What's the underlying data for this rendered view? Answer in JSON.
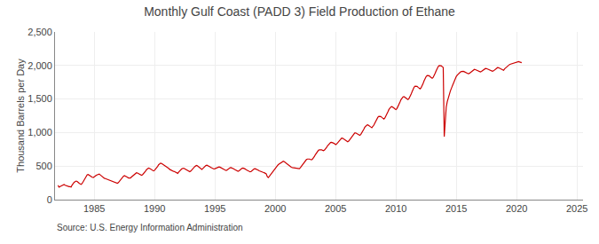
{
  "chart_data": {
    "type": "line",
    "title": "Monthly Gulf Coast (PADD 3) Field Production of Ethane",
    "ylabel": "Thousand Barrels per Day",
    "annotations": [
      "Source: U.S. Energy Information Administration"
    ],
    "color": "#cc0000",
    "grid": true,
    "xlim": [
      1981.75,
      2025.5
    ],
    "xticks": [
      1985,
      1990,
      1995,
      2000,
      2005,
      2010,
      2015,
      2020,
      2025
    ],
    "ylim": [
      0,
      2500
    ],
    "yticks": [
      0,
      500,
      {
        "value": 1000,
        "label": "1,000"
      },
      {
        "value": 1500,
        "label": "1,500"
      },
      {
        "value": 2000,
        "label": "2,000"
      },
      {
        "value": 2500,
        "label": "2,500"
      }
    ],
    "x": [
      1982,
      1982.0833333333333,
      1982.1666666666667,
      1982.25,
      1982.3333333333333,
      1982.4166666666667,
      1982.5,
      1982.5833333333333,
      1982.6666666666667,
      1982.75,
      1982.8333333333333,
      1982.9166666666667,
      1983,
      1983.0833333333333,
      1983.1666666666667,
      1983.25,
      1983.3333333333333,
      1983.4166666666667,
      1983.5,
      1983.5833333333333,
      1983.6666666666667,
      1983.75,
      1983.8333333333333,
      1983.9166666666667,
      1984,
      1984.0833333333333,
      1984.1666666666667,
      1984.25,
      1984.3333333333333,
      1984.4166666666667,
      1984.5,
      1984.5833333333333,
      1984.6666666666667,
      1984.75,
      1984.8333333333333,
      1984.9166666666667,
      1985,
      1985.0833333333333,
      1985.1666666666667,
      1985.25,
      1985.3333333333333,
      1985.4166666666667,
      1985.5,
      1985.5833333333333,
      1985.6666666666667,
      1985.75,
      1985.8333333333333,
      1985.9166666666667,
      1986,
      1986.0833333333333,
      1986.1666666666667,
      1986.25,
      1986.3333333333333,
      1986.4166666666667,
      1986.5,
      1986.5833333333333,
      1986.6666666666667,
      1986.75,
      1986.8333333333333,
      1986.9166666666667,
      1987,
      1987.0833333333333,
      1987.1666666666667,
      1987.25,
      1987.3333333333333,
      1987.4166666666667,
      1987.5,
      1987.5833333333333,
      1987.6666666666667,
      1987.75,
      1987.8333333333333,
      1987.9166666666667,
      1988,
      1988.0833333333333,
      1988.1666666666667,
      1988.25,
      1988.3333333333333,
      1988.4166666666667,
      1988.5,
      1988.5833333333333,
      1988.6666666666667,
      1988.75,
      1988.8333333333333,
      1988.9166666666667,
      1989,
      1989.0833333333333,
      1989.1666666666667,
      1989.25,
      1989.3333333333333,
      1989.4166666666667,
      1989.5,
      1989.5833333333333,
      1989.6666666666667,
      1989.75,
      1989.8333333333333,
      1989.9166666666667,
      1990,
      1990.0833333333333,
      1990.1666666666667,
      1990.25,
      1990.3333333333333,
      1990.4166666666667,
      1990.5,
      1990.5833333333333,
      1990.6666666666667,
      1990.75,
      1990.8333333333333,
      1990.9166666666667,
      1991,
      1991.0833333333333,
      1991.1666666666667,
      1991.25,
      1991.3333333333333,
      1991.4166666666667,
      1991.5,
      1991.5833333333333,
      1991.6666666666667,
      1991.75,
      1991.8333333333333,
      1991.9166666666667,
      1992,
      1992.0833333333333,
      1992.1666666666667,
      1992.25,
      1992.3333333333333,
      1992.4166666666667,
      1992.5,
      1992.5833333333333,
      1992.6666666666667,
      1992.75,
      1992.8333333333333,
      1992.9166666666667,
      1993,
      1993.0833333333333,
      1993.1666666666667,
      1993.25,
      1993.3333333333333,
      1993.4166666666667,
      1993.5,
      1993.5833333333333,
      1993.6666666666667,
      1993.75,
      1993.8333333333333,
      1993.9166666666667,
      1994,
      1994.0833333333333,
      1994.1666666666667,
      1994.25,
      1994.3333333333333,
      1994.4166666666667,
      1994.5,
      1994.5833333333333,
      1994.6666666666667,
      1994.75,
      1994.8333333333333,
      1994.9166666666667,
      1995,
      1995.0833333333333,
      1995.1666666666667,
      1995.25,
      1995.3333333333333,
      1995.4166666666667,
      1995.5,
      1995.5833333333333,
      1995.6666666666667,
      1995.75,
      1995.8333333333333,
      1995.9166666666667,
      1996,
      1996.0833333333333,
      1996.1666666666667,
      1996.25,
      1996.3333333333333,
      1996.4166666666667,
      1996.5,
      1996.5833333333333,
      1996.6666666666667,
      1996.75,
      1996.8333333333333,
      1996.9166666666667,
      1997,
      1997.0833333333333,
      1997.1666666666667,
      1997.25,
      1997.3333333333333,
      1997.4166666666667,
      1997.5,
      1997.5833333333333,
      1997.6666666666667,
      1997.75,
      1997.8333333333333,
      1997.9166666666667,
      1998,
      1998.0833333333333,
      1998.1666666666667,
      1998.25,
      1998.3333333333333,
      1998.4166666666667,
      1998.5,
      1998.5833333333333,
      1998.6666666666667,
      1998.75,
      1998.8333333333333,
      1998.9166666666667,
      1999,
      1999.0833333333333,
      1999.1666666666667,
      1999.25,
      1999.3333333333333,
      1999.4166666666667,
      1999.5,
      1999.5833333333333,
      1999.6666666666667,
      1999.75,
      1999.8333333333333,
      1999.9166666666667,
      2000,
      2000.0833333333333,
      2000.1666666666667,
      2000.25,
      2000.3333333333333,
      2000.4166666666667,
      2000.5,
      2000.5833333333333,
      2000.6666666666667,
      2000.75,
      2000.8333333333333,
      2000.9166666666667,
      2001,
      2001.0833333333333,
      2001.1666666666667,
      2001.25,
      2001.3333333333333,
      2001.4166666666667,
      2001.5,
      2001.5833333333333,
      2001.6666666666667,
      2001.75,
      2001.8333333333333,
      2001.9166666666667,
      2002,
      2002.0833333333333,
      2002.1666666666667,
      2002.25,
      2002.3333333333333,
      2002.4166666666667,
      2002.5,
      2002.5833333333333,
      2002.6666666666667,
      2002.75,
      2002.8333333333333,
      2002.9166666666667,
      2003,
      2003.0833333333333,
      2003.1666666666667,
      2003.25,
      2003.3333333333333,
      2003.4166666666667,
      2003.5,
      2003.5833333333333,
      2003.6666666666667,
      2003.75,
      2003.8333333333333,
      2003.9166666666667,
      2004,
      2004.0833333333333,
      2004.1666666666667,
      2004.25,
      2004.3333333333333,
      2004.4166666666667,
      2004.5,
      2004.5833333333333,
      2004.6666666666667,
      2004.75,
      2004.8333333333333,
      2004.9166666666667,
      2005,
      2005.0833333333333,
      2005.1666666666667,
      2005.25,
      2005.3333333333333,
      2005.4166666666667,
      2005.5,
      2005.5833333333333,
      2005.6666666666667,
      2005.75,
      2005.8333333333333,
      2005.9166666666667,
      2006,
      2006.0833333333333,
      2006.1666666666667,
      2006.25,
      2006.3333333333333,
      2006.4166666666667,
      2006.5,
      2006.5833333333333,
      2006.6666666666667,
      2006.75,
      2006.8333333333333,
      2006.9166666666667,
      2007,
      2007.0833333333333,
      2007.1666666666667,
      2007.25,
      2007.3333333333333,
      2007.4166666666667,
      2007.5,
      2007.5833333333333,
      2007.6666666666667,
      2007.75,
      2007.8333333333333,
      2007.9166666666667,
      2008,
      2008.0833333333333,
      2008.1666666666667,
      2008.25,
      2008.3333333333333,
      2008.4166666666667,
      2008.5,
      2008.5833333333333,
      2008.6666666666667,
      2008.75,
      2008.8333333333333,
      2008.9166666666667,
      2009,
      2009.0833333333333,
      2009.1666666666667,
      2009.25,
      2009.3333333333333,
      2009.4166666666667,
      2009.5,
      2009.5833333333333,
      2009.6666666666667,
      2009.75,
      2009.8333333333333,
      2009.9166666666667,
      2010,
      2010.0833333333333,
      2010.1666666666667,
      2010.25,
      2010.3333333333333,
      2010.4166666666667,
      2010.5,
      2010.5833333333333,
      2010.6666666666667,
      2010.75,
      2010.8333333333333,
      2010.9166666666667,
      2011,
      2011.0833333333333,
      2011.1666666666667,
      2011.25,
      2011.3333333333333,
      2011.4166666666667,
      2011.5,
      2011.5833333333333,
      2011.6666666666667,
      2011.75,
      2011.8333333333333,
      2011.9166666666667,
      2012,
      2012.0833333333333,
      2012.1666666666667,
      2012.25,
      2012.3333333333333,
      2012.4166666666667,
      2012.5,
      2012.5833333333333,
      2012.6666666666667,
      2012.75,
      2012.8333333333333,
      2012.9166666666667,
      2013,
      2013.0833333333333,
      2013.1666666666667,
      2013.25,
      2013.3333333333333,
      2013.4166666666667,
      2013.5,
      2013.5833333333333,
      2013.6666666666667,
      2013.75,
      2013.8333333333333,
      2013.9166666666667,
      2014,
      2014.0833333333333,
      2014.1666666666667,
      2014.25,
      2014.3333333333333,
      2014.4166666666667,
      2014.5,
      2014.5833333333333,
      2014.6666666666667,
      2014.75,
      2014.8333333333333,
      2014.9166666666667,
      2015,
      2015.0833333333333,
      2015.1666666666667,
      2015.25,
      2015.3333333333333,
      2015.4166666666667,
      2015.5,
      2015.5833333333333,
      2015.6666666666667,
      2015.75,
      2015.8333333333333,
      2015.9166666666667,
      2016,
      2016.0833333333333,
      2016.1666666666667,
      2016.25,
      2016.3333333333333,
      2016.4166666666667,
      2016.5,
      2016.5833333333333,
      2016.6666666666667,
      2016.75,
      2016.8333333333333,
      2016.9166666666667,
      2017,
      2017.0833333333333,
      2017.1666666666667,
      2017.25,
      2017.3333333333333,
      2017.4166666666667,
      2017.5,
      2017.5833333333333,
      2017.6666666666667,
      2017.75,
      2017.8333333333333,
      2017.9166666666667,
      2018,
      2018.0833333333333,
      2018.1666666666667,
      2018.25,
      2018.3333333333333,
      2018.4166666666667,
      2018.5,
      2018.5833333333333,
      2018.6666666666667,
      2018.75,
      2018.8333333333333,
      2018.9166666666667,
      2019,
      2019.0833333333333,
      2019.1666666666667,
      2019.25,
      2019.3333333333333,
      2019.4166666666667,
      2019.5,
      2019.5833333333333,
      2019.6666666666667,
      2019.75,
      2019.8333333333333,
      2019.9166666666667,
      2020,
      2020.0833333333333,
      2020.1666666666667,
      2020.25,
      2020.3333333333333,
      2020.4166666666667
    ],
    "values": [
      213,
      186,
      196,
      206,
      218,
      222,
      226,
      215,
      207,
      203,
      198,
      194,
      194,
      188,
      218,
      243,
      258,
      268,
      277,
      271,
      253,
      244,
      235,
      229,
      242,
      268,
      307,
      337,
      356,
      370,
      375,
      362,
      352,
      342,
      334,
      330,
      337,
      350,
      364,
      370,
      376,
      380,
      369,
      354,
      340,
      329,
      319,
      314,
      309,
      304,
      295,
      286,
      280,
      275,
      270,
      265,
      260,
      255,
      250,
      245,
      254,
      275,
      294,
      314,
      334,
      348,
      358,
      352,
      343,
      333,
      323,
      318,
      322,
      337,
      352,
      367,
      381,
      391,
      401,
      397,
      388,
      378,
      369,
      364,
      371,
      386,
      405,
      425,
      447,
      462,
      472,
      467,
      457,
      448,
      433,
      428,
      438,
      453,
      471,
      495,
      519,
      534,
      544,
      539,
      530,
      521,
      507,
      502,
      491,
      481,
      466,
      451,
      441,
      431,
      426,
      421,
      416,
      406,
      397,
      392,
      411,
      430,
      449,
      459,
      465,
      469,
      460,
      450,
      440,
      430,
      421,
      416,
      426,
      445,
      464,
      479,
      494,
      504,
      509,
      500,
      486,
      471,
      457,
      451,
      465,
      483,
      498,
      508,
      513,
      508,
      499,
      490,
      480,
      471,
      462,
      457,
      461,
      470,
      480,
      485,
      487,
      484,
      477,
      468,
      458,
      449,
      440,
      434,
      441,
      455,
      467,
      475,
      477,
      473,
      466,
      457,
      445,
      436,
      427,
      422,
      430,
      447,
      461,
      468,
      470,
      466,
      458,
      447,
      436,
      427,
      419,
      414,
      421,
      437,
      451,
      459,
      461,
      457,
      450,
      440,
      430,
      422,
      415,
      411,
      407,
      402,
      398,
      385,
      345,
      330,
      345,
      365,
      388,
      415,
      440,
      460,
      472,
      488,
      505,
      522,
      532,
      545,
      558,
      568,
      572,
      565,
      552,
      542,
      532,
      518,
      502,
      492,
      482,
      477,
      474,
      472,
      470,
      467,
      463,
      458,
      462,
      477,
      497,
      519,
      543,
      566,
      585,
      598,
      605,
      608,
      605,
      598,
      594,
      604,
      622,
      647,
      674,
      700,
      722,
      737,
      743,
      746,
      743,
      736,
      730,
      740,
      756,
      779,
      803,
      825,
      842,
      851,
      854,
      851,
      842,
      832,
      820,
      829,
      846,
      869,
      892,
      908,
      917,
      915,
      905,
      891,
      879,
      869,
      862,
      872,
      892,
      916,
      941,
      965,
      983,
      993,
      995,
      988,
      975,
      966,
      958,
      970,
      992,
      1019,
      1049,
      1079,
      1100,
      1111,
      1115,
      1108,
      1096,
      1083,
      1073,
      1088,
      1111,
      1141,
      1173,
      1205,
      1228,
      1241,
      1244,
      1238,
      1225,
      1212,
      1202,
      1218,
      1243,
      1276,
      1311,
      1344,
      1369,
      1383,
      1386,
      1379,
      1366,
      1353,
      1343,
      1358,
      1384,
      1418,
      1455,
      1491,
      1517,
      1531,
      1535,
      1528,
      1515,
      1502,
      1492,
      1508,
      1534,
      1569,
      1608,
      1647,
      1676,
      1692,
      1695,
      1689,
      1675,
      1662,
      1652,
      1668,
      1695,
      1732,
      1771,
      1808,
      1834,
      1850,
      1853,
      1847,
      1833,
      1820,
      1808,
      1822,
      1848,
      1884,
      1922,
      1958,
      1983,
      1998,
      2001,
      1995,
      1982,
      1969,
      940,
      1200,
      1380,
      1460,
      1520,
      1570,
      1615,
      1655,
      1695,
      1735,
      1778,
      1818,
      1838,
      1858,
      1876,
      1892,
      1902,
      1910,
      1915,
      1912,
      1906,
      1899,
      1891,
      1883,
      1876,
      1883,
      1896,
      1910,
      1924,
      1935,
      1941,
      1938,
      1932,
      1925,
      1918,
      1910,
      1903,
      1910,
      1923,
      1937,
      1948,
      1955,
      1954,
      1948,
      1941,
      1934,
      1927,
      1920,
      1913,
      1920,
      1934,
      1948,
      1960,
      1968,
      1967,
      1960,
      1952,
      1944,
      1936,
      1928,
      1950,
      1965,
      1978,
      1992,
      2005,
      2015,
      2020,
      2025,
      2030,
      2035,
      2040,
      2048,
      2055,
      2060,
      2058,
      2052,
      2045,
      2042
    ]
  }
}
